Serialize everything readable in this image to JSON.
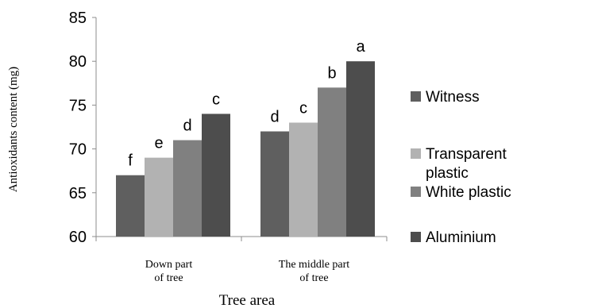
{
  "chart_data": {
    "type": "bar",
    "categories": [
      [
        "Down part",
        "of tree"
      ],
      [
        "The middle part",
        "of tree"
      ]
    ],
    "series": [
      {
        "name": "Witness",
        "values": [
          67,
          72
        ],
        "labels": [
          "f",
          "d"
        ],
        "color": "#5f5f5f"
      },
      {
        "name": "Transparent plastic",
        "legend_lines": [
          "Transparent",
          "plastic"
        ],
        "values": [
          69,
          73
        ],
        "labels": [
          "e",
          "c"
        ],
        "color": "#b2b2b2"
      },
      {
        "name": "White plastic",
        "values": [
          71,
          77
        ],
        "labels": [
          "d",
          "b"
        ],
        "color": "#808080"
      },
      {
        "name": "Aluminium",
        "values": [
          74,
          80
        ],
        "labels": [
          "c",
          "a"
        ],
        "color": "#4d4d4d"
      }
    ],
    "xlabel": "Tree area",
    "ylabel": "Antioxidants content (mg)",
    "ylim": [
      60,
      85
    ],
    "yticks": [
      60,
      65,
      70,
      75,
      80,
      85
    ],
    "grid": false,
    "legend_position": "right"
  }
}
